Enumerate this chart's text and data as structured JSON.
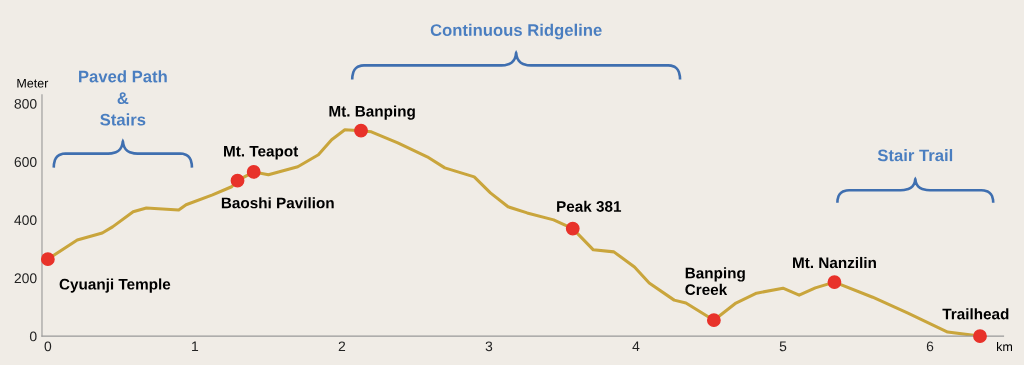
{
  "chart_data": {
    "type": "line",
    "ylabel": "Meter",
    "xlabel": "km",
    "xlim": [
      -0.04,
      6.5
    ],
    "ylim": [
      0,
      830
    ],
    "xticks": [
      0,
      1,
      2,
      3,
      4,
      5,
      6
    ],
    "yticks": [
      0,
      200,
      400,
      600,
      800
    ],
    "grid": false,
    "legend": false,
    "marker": "none",
    "line_style": "solid",
    "series": [
      {
        "type": "line",
        "color": "#c9a53c",
        "x": [
          0,
          0.2,
          0.37,
          0.44,
          0.58,
          0.67,
          0.89,
          0.94,
          1.12,
          1.25,
          1.29,
          1.4,
          1.5,
          1.7,
          1.84,
          1.93,
          2.02,
          2.13,
          2.2,
          2.38,
          2.58,
          2.7,
          2.9,
          3.01,
          3.13,
          3.26,
          3.44,
          3.57,
          3.71,
          3.85,
          3.99,
          4.09,
          4.26,
          4.34,
          4.53,
          4.68,
          4.82,
          5.0,
          5.11,
          5.22,
          5.35,
          5.61,
          5.85,
          6.12,
          6.34
        ],
        "values": [
          265,
          331,
          355,
          376,
          428,
          441,
          434,
          452,
          486,
          514,
          535,
          565,
          555,
          583,
          624,
          676,
          710,
          707,
          703,
          665,
          617,
          579,
          548,
          493,
          445,
          424,
          400,
          370,
          297,
          290,
          238,
          183,
          124,
          114,
          55,
          114,
          148,
          165,
          141,
          166,
          186,
          134,
          79,
          14,
          0
        ]
      },
      {
        "type": "scatter",
        "marker": "circle",
        "color": "#e8322a",
        "x": [
          0,
          1.29,
          1.4,
          2.13,
          3.57,
          4.53,
          5.35,
          6.34
        ],
        "values": [
          265,
          535,
          565,
          707,
          370,
          55,
          186,
          0
        ]
      }
    ],
    "annotations": [
      {
        "text": "Cyuanji Temple",
        "x": 0,
        "y": 265
      },
      {
        "text": "Baoshi Pavilion",
        "x": 1.29,
        "y": 535
      },
      {
        "text": "Mt. Teapot",
        "x": 1.4,
        "y": 565
      },
      {
        "text": "Mt. Banping",
        "x": 2.13,
        "y": 707
      },
      {
        "text": "Peak 381",
        "x": 3.57,
        "y": 370
      },
      {
        "text": "Banping\nCreek",
        "x": 4.53,
        "y": 55
      },
      {
        "text": "Mt. Nanzilin",
        "x": 5.35,
        "y": 186
      },
      {
        "text": "Trailhead",
        "x": 6.34,
        "y": 0
      },
      "Paved Path\n&\nStairs",
      "Continuous Ridgeline",
      "Stair Trail"
    ]
  }
}
